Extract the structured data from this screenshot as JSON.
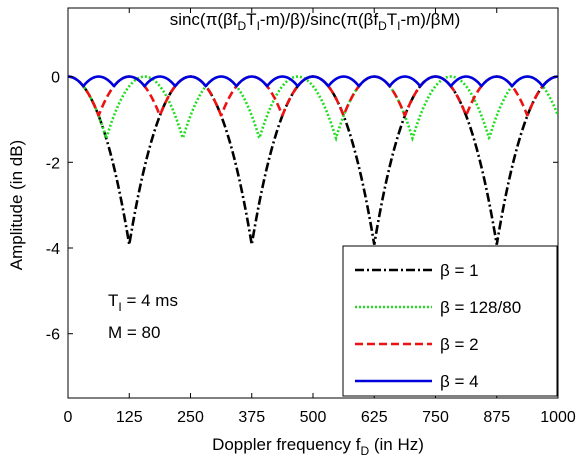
{
  "chart_data": {
    "type": "line",
    "title": "sinc(π(βf_DT_I-m)/β)/sinc(π(βf_DT_I-m)/βM)",
    "title_parts": {
      "a": "sinc(π(βf",
      "b": "D",
      "c": "T",
      "d": "I",
      "e": "-m)/β)/sinc(π(βf",
      "f": "D",
      "g": "T",
      "h": "I",
      "i": "-m)/βM)"
    },
    "xlabel": "Doppler frequency f_D (in Hz)",
    "xlabel_parts": {
      "main": "Doppler frequency f",
      "sub": "D",
      "tail": " (in Hz)"
    },
    "ylabel": "Amplitude (in dB)",
    "xlim": [
      0,
      1000
    ],
    "ylim": [
      -7.5,
      1.6
    ],
    "xticks": [
      0,
      125,
      250,
      375,
      500,
      625,
      750,
      875,
      1000
    ],
    "yticks": [
      0,
      -2,
      -4,
      -6
    ],
    "grid": false,
    "legend_position": "bottom-right",
    "legend": [
      "β = 1",
      "β = 128/80",
      "β = 2",
      "β = 4"
    ],
    "annotations": {
      "ti_main": "T",
      "ti_sub": "I",
      "ti_tail": " = 4 ms",
      "m_label": "M = 80"
    },
    "params": {
      "T_I_seconds": 0.004,
      "M": 80
    },
    "series": [
      {
        "name": "β = 1",
        "beta": 1,
        "color": "#000000",
        "dash": "9 3 2 3"
      },
      {
        "name": "β = 128/80",
        "beta": 1.6,
        "color": "#22dd22",
        "dash": "2 2"
      },
      {
        "name": "β = 2",
        "beta": 2,
        "color": "#ee1111",
        "dash": "8 4"
      },
      {
        "name": "β = 4",
        "beta": 4,
        "color": "#0000dd",
        "dash": ""
      }
    ]
  }
}
